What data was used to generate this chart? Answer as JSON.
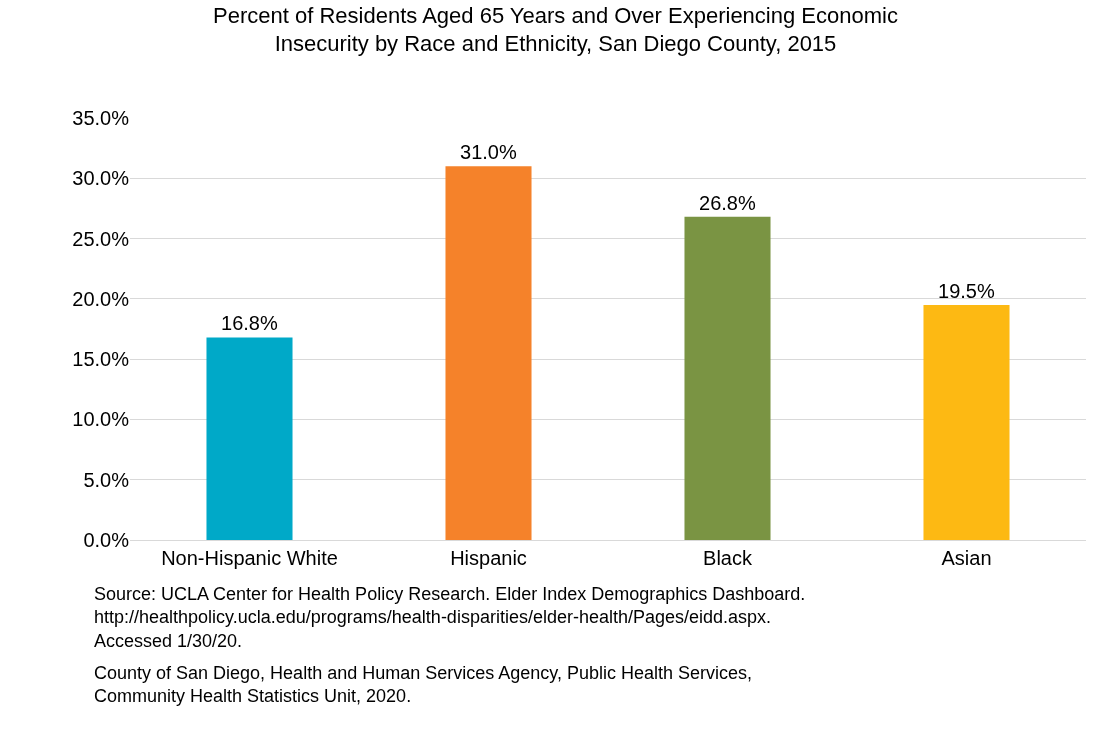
{
  "chart_data": {
    "type": "bar",
    "title": "Percent of Residents Aged 65 Years and Over Experiencing Economic\nInsecurity by Race and Ethnicity, San Diego County, 2015",
    "categories": [
      "Non-Hispanic White",
      "Hispanic",
      "Black",
      "Asian"
    ],
    "values": [
      16.8,
      31.0,
      26.8,
      19.5
    ],
    "value_labels": [
      "16.8%",
      "31.0%",
      "26.8%",
      "19.5%"
    ],
    "colors": [
      "#00a9c8",
      "#f5822a",
      "#7a9443",
      "#fdb913"
    ],
    "ylim": [
      0,
      35
    ],
    "yticks": [
      {
        "value": 0,
        "label": "0.0%"
      },
      {
        "value": 5,
        "label": "5.0%"
      },
      {
        "value": 10,
        "label": "10.0%"
      },
      {
        "value": 15,
        "label": "15.0%"
      },
      {
        "value": 20,
        "label": "20.0%"
      },
      {
        "value": 25,
        "label": "25.0%"
      },
      {
        "value": 30,
        "label": "30.0%"
      },
      {
        "value": 35,
        "label": "35.0%"
      }
    ],
    "grid": "y",
    "annotations": [
      "Source: UCLA Center for Health Policy Research. Elder Index Demographics Dashboard.\nhttp://healthpolicy.ucla.edu/programs/health-disparities/elder-health/Pages/eidd.aspx.\nAccessed 1/30/20.",
      "County of San Diego, Health and Human Services Agency, Public Health Services,\nCommunity Health Statistics Unit, 2020."
    ]
  }
}
